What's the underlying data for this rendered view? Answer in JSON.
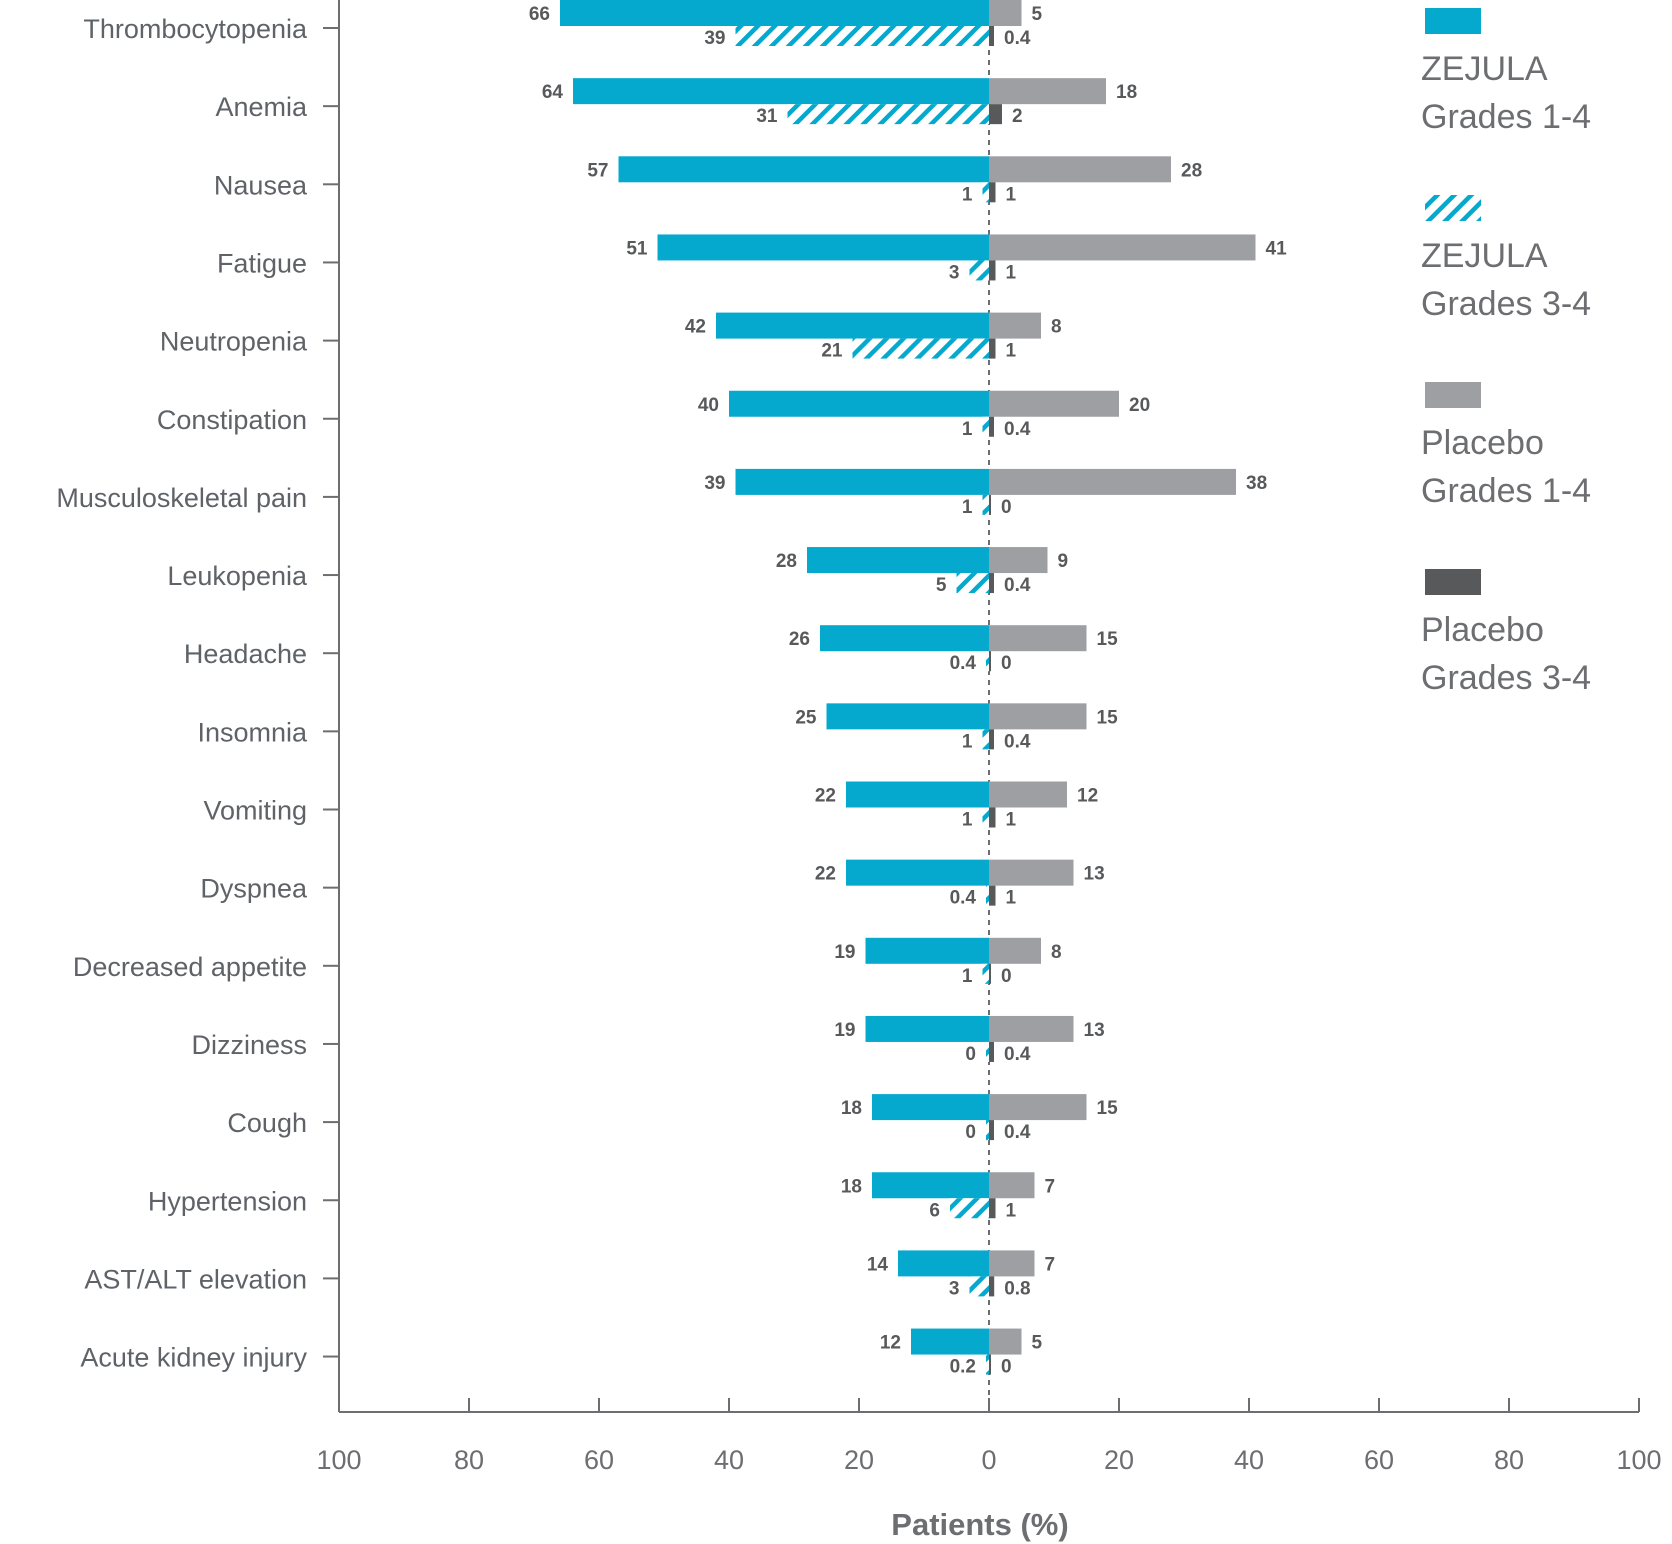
{
  "chart_data": {
    "type": "bar",
    "orientation": "horizontal-diverging",
    "title": "",
    "xlabel": "Patients (%)",
    "xlim": [
      -100,
      100
    ],
    "x_ticks": [
      -100,
      -80,
      -60,
      -40,
      -20,
      0,
      20,
      40,
      60,
      80,
      100
    ],
    "x_tick_labels": [
      "100",
      "80",
      "60",
      "40",
      "20",
      "0",
      "20",
      "40",
      "60",
      "80",
      "100"
    ],
    "categories": [
      "Thrombocytopenia",
      "Anemia",
      "Nausea",
      "Fatigue",
      "Neutropenia",
      "Constipation",
      "Musculoskeletal pain",
      "Leukopenia",
      "Headache",
      "Insomnia",
      "Vomiting",
      "Dyspnea",
      "Decreased appetite",
      "Dizziness",
      "Cough",
      "Hypertension",
      "AST/ALT elevation",
      "Acute kidney injury"
    ],
    "series": [
      {
        "name": "ZEJULA Grades 1-4",
        "side": "left",
        "row": "upper",
        "pattern": "solid",
        "color": "#05a9ce",
        "values": [
          66,
          64,
          57,
          51,
          42,
          40,
          39,
          28,
          26,
          25,
          22,
          22,
          19,
          19,
          18,
          18,
          14,
          12
        ],
        "labels": [
          "66",
          "64",
          "57",
          "51",
          "42",
          "40",
          "39",
          "28",
          "26",
          "25",
          "22",
          "22",
          "19",
          "19",
          "18",
          "18",
          "14",
          "12"
        ]
      },
      {
        "name": "ZEJULA Grades 3-4",
        "side": "left",
        "row": "lower",
        "pattern": "hatched",
        "color": "#05a9ce",
        "values": [
          39,
          31,
          1,
          3,
          21,
          1,
          1,
          5,
          0.4,
          1,
          1,
          0.4,
          1,
          0,
          0,
          6,
          3,
          0.2
        ],
        "labels": [
          "39",
          "31",
          "1",
          "3",
          "21",
          "1",
          "1",
          "5",
          "0.4",
          "1",
          "1",
          "0.4",
          "1",
          "0",
          "0",
          "6",
          "3",
          "0.2"
        ]
      },
      {
        "name": "Placebo Grades 1-4",
        "side": "right",
        "row": "upper",
        "pattern": "solid",
        "color": "#9d9fa2",
        "values": [
          5,
          18,
          28,
          41,
          8,
          20,
          38,
          9,
          15,
          15,
          12,
          13,
          8,
          13,
          15,
          7,
          7,
          5
        ],
        "labels": [
          "5",
          "18",
          "28",
          "41",
          "8",
          "20",
          "38",
          "9",
          "15",
          "15",
          "12",
          "13",
          "8",
          "13",
          "15",
          "7",
          "7",
          "5"
        ]
      },
      {
        "name": "Placebo Grades 3-4",
        "side": "right",
        "row": "lower",
        "pattern": "solid",
        "color": "#58595b",
        "values": [
          0.4,
          2,
          1,
          1,
          1,
          0.4,
          0,
          0.4,
          0,
          0.4,
          1,
          1,
          0,
          0.4,
          0.4,
          1,
          0.8,
          0
        ],
        "labels": [
          "0.4",
          "2",
          "1",
          "1",
          "1",
          "0.4",
          "0",
          "0.4",
          "0",
          "0.4",
          "1",
          "1",
          "0",
          "0.4",
          "0.4",
          "1",
          "0.8",
          "0"
        ]
      }
    ],
    "legend": {
      "position": "top-right",
      "entries": [
        {
          "line1": "ZEJULA",
          "line2": "Grades 1-4",
          "series": 0
        },
        {
          "line1": "ZEJULA",
          "line2": "Grades 3-4",
          "series": 1
        },
        {
          "line1": "Placebo",
          "line2": "Grades 1-4",
          "series": 2
        },
        {
          "line1": "Placebo",
          "line2": "Grades 3-4",
          "series": 3
        }
      ]
    }
  }
}
